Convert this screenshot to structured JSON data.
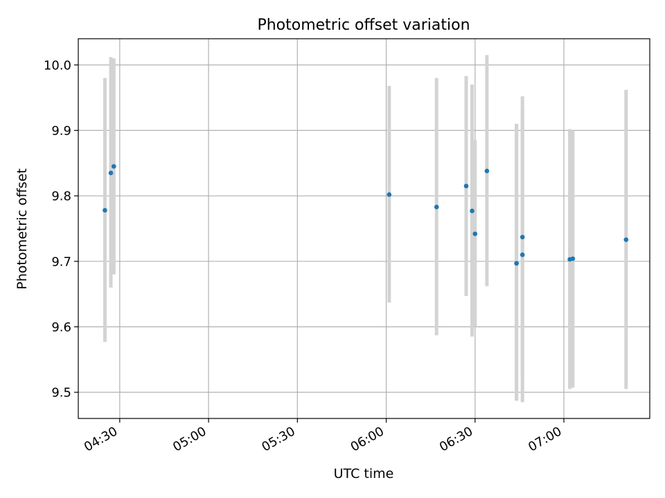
{
  "chart_data": {
    "type": "scatter",
    "title": "Photometric offset variation",
    "xlabel": "UTC time",
    "ylabel": "Photometric offset",
    "xlim": [
      "04:16",
      "07:29"
    ],
    "ylim": [
      9.46,
      10.04
    ],
    "x_ticks": [
      "04:30",
      "05:00",
      "05:30",
      "06:00",
      "06:30",
      "07:00"
    ],
    "y_ticks": [
      9.5,
      9.6,
      9.7,
      9.8,
      9.9,
      10.0
    ],
    "grid": true,
    "legend": "none",
    "points": [
      {
        "t": "04:25",
        "y": 9.778,
        "lo": 9.577,
        "hi": 9.98
      },
      {
        "t": "04:27",
        "y": 9.835,
        "lo": 9.66,
        "hi": 10.012
      },
      {
        "t": "04:28",
        "y": 9.845,
        "lo": 9.68,
        "hi": 10.01
      },
      {
        "t": "06:01",
        "y": 9.802,
        "lo": 9.637,
        "hi": 9.968
      },
      {
        "t": "06:17",
        "y": 9.783,
        "lo": 9.587,
        "hi": 9.98
      },
      {
        "t": "06:27",
        "y": 9.815,
        "lo": 9.647,
        "hi": 9.983
      },
      {
        "t": "06:29",
        "y": 9.777,
        "lo": 9.585,
        "hi": 9.97
      },
      {
        "t": "06:30",
        "y": 9.742,
        "lo": 9.6,
        "hi": 9.885
      },
      {
        "t": "06:34",
        "y": 9.838,
        "lo": 9.662,
        "hi": 10.015
      },
      {
        "t": "06:44",
        "y": 9.697,
        "lo": 9.487,
        "hi": 9.91
      },
      {
        "t": "06:44",
        "y": 9.697,
        "lo": 9.487,
        "hi": 9.91
      },
      {
        "t": "06:46",
        "y": 9.71,
        "lo": 9.485,
        "hi": 9.935
      },
      {
        "t": "06:46",
        "y": 9.737,
        "lo": 9.524,
        "hi": 9.952
      },
      {
        "t": "07:02",
        "y": 9.703,
        "lo": 9.505,
        "hi": 9.902
      },
      {
        "t": "07:03",
        "y": 9.704,
        "lo": 9.507,
        "hi": 9.9
      },
      {
        "t": "07:21",
        "y": 9.733,
        "lo": 9.505,
        "hi": 9.962
      }
    ],
    "colors": {
      "marker": "#1f77b4",
      "errorbar": "#d3d3d3",
      "grid": "#b0b0b0"
    }
  }
}
